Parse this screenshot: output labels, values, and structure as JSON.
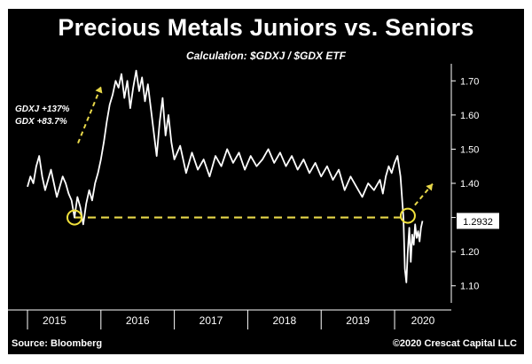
{
  "chart_data": {
    "type": "line",
    "title": "Precious Metals Juniors vs. Seniors",
    "subtitle": "Calculation: $GDXJ / $GDX ETF",
    "source": "Source: Bloomberg",
    "credit": "©2020 Crescat Capital LLC",
    "ylim": [
      1.05,
      1.75
    ],
    "yticks": [
      "1.10",
      "1.20",
      "1.30",
      "1.40",
      "1.50",
      "1.60",
      "1.70"
    ],
    "xlim": [
      2015.0,
      2020.7
    ],
    "xticks": [
      2015,
      2016,
      2017,
      2018,
      2019,
      2020
    ],
    "grid": false,
    "last_value_label": "1.2932",
    "annotation": [
      "GDXJ +137%",
      "GDX +83.7%"
    ],
    "highlight_colors": {
      "circle": "#f2e23c",
      "dashes": "#e8d84a",
      "line": "#ffffff"
    },
    "series": [
      {
        "x": [
          2015.0,
          2015.04,
          2015.08,
          2015.12,
          2015.16,
          2015.2,
          2015.24,
          2015.28,
          2015.32,
          2015.36,
          2015.4,
          2015.44,
          2015.48,
          2015.52,
          2015.56,
          2015.6,
          2015.64,
          2015.68,
          2015.72,
          2015.76,
          2015.8,
          2015.84,
          2015.88,
          2015.92,
          2015.96,
          2016.0,
          2016.04,
          2016.08,
          2016.12,
          2016.16,
          2016.2,
          2016.24,
          2016.28,
          2016.32,
          2016.36,
          2016.4,
          2016.44,
          2016.48,
          2016.52,
          2016.56,
          2016.6,
          2016.64,
          2016.68,
          2016.72,
          2016.76,
          2016.8,
          2016.84,
          2016.88,
          2016.92,
          2016.96,
          2017.0,
          2017.08,
          2017.16,
          2017.24,
          2017.32,
          2017.4,
          2017.48,
          2017.56,
          2017.64,
          2017.72,
          2017.8,
          2017.88,
          2017.96,
          2018.04,
          2018.12,
          2018.2,
          2018.28,
          2018.36,
          2018.44,
          2018.52,
          2018.6,
          2018.68,
          2018.76,
          2018.84,
          2018.92,
          2019.0,
          2019.08,
          2019.16,
          2019.24,
          2019.32,
          2019.4,
          2019.48,
          2019.56,
          2019.64,
          2019.72,
          2019.8,
          2019.84,
          2019.88,
          2019.92,
          2019.96,
          2020.0,
          2020.04,
          2020.08,
          2020.12,
          2020.14,
          2020.16,
          2020.18,
          2020.2,
          2020.22,
          2020.24,
          2020.26,
          2020.28,
          2020.3,
          2020.32,
          2020.34,
          2020.36,
          2020.38
        ],
        "values": [
          1.39,
          1.42,
          1.4,
          1.45,
          1.48,
          1.42,
          1.38,
          1.41,
          1.44,
          1.4,
          1.36,
          1.39,
          1.42,
          1.4,
          1.37,
          1.35,
          1.3,
          1.36,
          1.33,
          1.28,
          1.34,
          1.38,
          1.35,
          1.4,
          1.43,
          1.47,
          1.52,
          1.58,
          1.63,
          1.66,
          1.7,
          1.68,
          1.72,
          1.65,
          1.7,
          1.62,
          1.68,
          1.73,
          1.67,
          1.71,
          1.64,
          1.69,
          1.62,
          1.55,
          1.48,
          1.58,
          1.65,
          1.54,
          1.6,
          1.52,
          1.47,
          1.51,
          1.43,
          1.49,
          1.44,
          1.47,
          1.42,
          1.48,
          1.45,
          1.5,
          1.46,
          1.49,
          1.44,
          1.48,
          1.45,
          1.47,
          1.5,
          1.46,
          1.49,
          1.45,
          1.48,
          1.44,
          1.47,
          1.43,
          1.46,
          1.42,
          1.45,
          1.41,
          1.44,
          1.38,
          1.42,
          1.39,
          1.36,
          1.4,
          1.38,
          1.41,
          1.37,
          1.42,
          1.45,
          1.43,
          1.46,
          1.48,
          1.42,
          1.3,
          1.15,
          1.11,
          1.2,
          1.27,
          1.17,
          1.25,
          1.22,
          1.28,
          1.24,
          1.26,
          1.23,
          1.27,
          1.29
        ]
      }
    ]
  }
}
